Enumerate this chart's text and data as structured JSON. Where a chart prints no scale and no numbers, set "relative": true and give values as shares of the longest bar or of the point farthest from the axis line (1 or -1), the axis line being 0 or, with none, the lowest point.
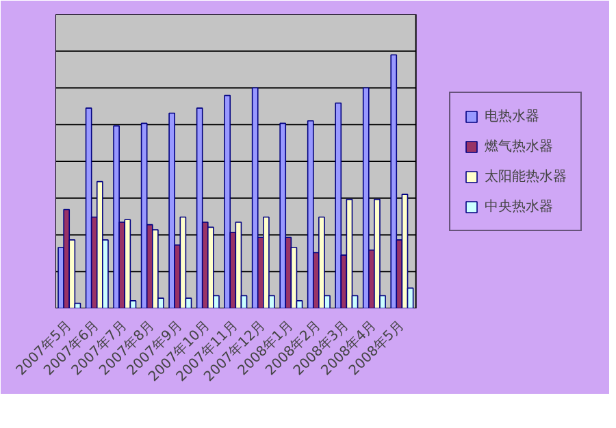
{
  "chart_data": {
    "type": "bar",
    "relative": true,
    "grid": "y",
    "legend": "right",
    "categories": [
      "2007年5月",
      "2007年6月",
      "2007年7月",
      "2007年8月",
      "2007年9月",
      "2007年10月",
      "2007年11月",
      "2007年12月",
      "2008年1月",
      "2008年2月",
      "2008年3月",
      "2008年4月",
      "2008年5月"
    ],
    "series": [
      {
        "name": "电热水器",
        "color": "#9999ff",
        "values": [
          0.24,
          0.79,
          0.72,
          0.73,
          0.77,
          0.79,
          0.84,
          0.87,
          0.73,
          0.74,
          0.81,
          0.87,
          1.0
        ]
      },
      {
        "name": "燃气热水器",
        "color": "#993366",
        "values": [
          0.39,
          0.36,
          0.34,
          0.33,
          0.25,
          0.34,
          0.3,
          0.28,
          0.28,
          0.22,
          0.21,
          0.23,
          0.27
        ]
      },
      {
        "name": "太阳能热水器",
        "color": "#ffffcc",
        "values": [
          0.27,
          0.5,
          0.35,
          0.31,
          0.36,
          0.32,
          0.34,
          0.36,
          0.24,
          0.36,
          0.43,
          0.43,
          0.45
        ]
      },
      {
        "name": "中央热水器",
        "color": "#ccffff",
        "values": [
          0.02,
          0.27,
          0.03,
          0.04,
          0.04,
          0.05,
          0.05,
          0.05,
          0.03,
          0.05,
          0.05,
          0.05,
          0.08
        ]
      }
    ]
  }
}
